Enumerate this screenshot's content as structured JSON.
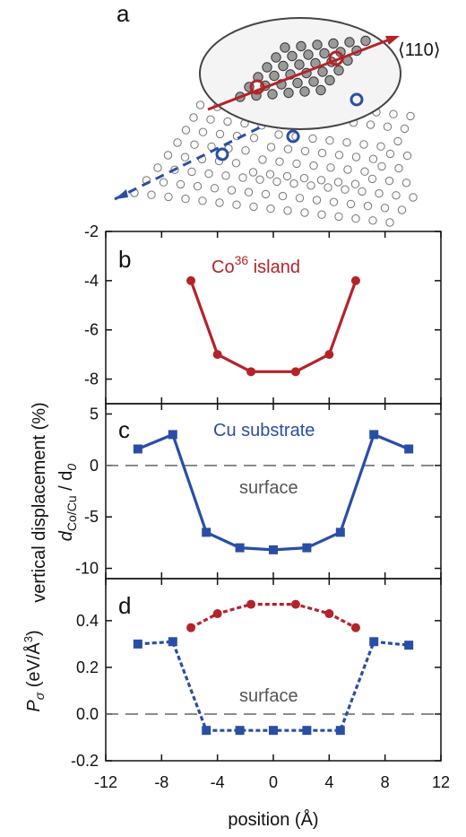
{
  "figure": {
    "panel_a": {
      "letter": "a",
      "direction_label": "⟨110⟩"
    },
    "ylabel_shared": "vertical displacement (%)",
    "ylabel_shared_sub": "d",
    "ylabel_shared_sub_sub": "Co/Cu",
    "ylabel_shared_rest": " / d",
    "ylabel_shared_rest_sub": "0",
    "colors": {
      "cobalt": "#b5232a",
      "copper": "#2a4ea6",
      "surface_line": "#666666",
      "frame": "#111111"
    }
  },
  "chart_data": [
    {
      "type": "line",
      "panel": "b",
      "annotation": {
        "prefix": "Co",
        "sup": "36",
        "suffix": " island"
      },
      "xlim": [
        -12,
        12
      ],
      "ylim": [
        -9,
        -2
      ],
      "yticks": [
        -8,
        -6,
        -4,
        -2
      ],
      "series": [
        {
          "style": "solid",
          "marker": "circle",
          "color": "#b5232a",
          "x": [
            -5.9,
            -4.0,
            -1.6,
            1.6,
            4.0,
            5.9
          ],
          "y": [
            -4.0,
            -7.0,
            -7.7,
            -7.7,
            -7.0,
            -4.0
          ]
        }
      ]
    },
    {
      "type": "line",
      "panel": "c",
      "annotation": {
        "text": "Cu substrate"
      },
      "surface_label": "surface",
      "reference_line": 0,
      "xlim": [
        -12,
        12
      ],
      "ylim": [
        -11,
        6
      ],
      "yticks": [
        -10,
        -5,
        0,
        5
      ],
      "series": [
        {
          "style": "solid",
          "marker": "square",
          "color": "#2a4ea6",
          "x": [
            -9.7,
            -7.2,
            -4.8,
            -2.4,
            0.0,
            2.4,
            4.8,
            7.2,
            9.7
          ],
          "y": [
            1.6,
            3.0,
            -6.5,
            -8.0,
            -8.2,
            -8.0,
            -6.5,
            3.0,
            1.6
          ]
        }
      ]
    },
    {
      "type": "line",
      "panel": "d",
      "ylabel": "P",
      "ylabel_sub": "σ",
      "ylabel_rest": " (eV/Å",
      "ylabel_sup": "3",
      "ylabel_end": ")",
      "surface_label": "surface",
      "reference_line": 0,
      "xlabel": "position (Å)",
      "xlim": [
        -12,
        12
      ],
      "ylim": [
        -0.2,
        0.58
      ],
      "yticks": [
        -0.2,
        0.0,
        0.2,
        0.4
      ],
      "ytick_labels": [
        "-0.2",
        "0.0",
        "0.2",
        "0.4"
      ],
      "xticks": [
        -12,
        -8,
        -4,
        0,
        4,
        8,
        12
      ],
      "xtick_labels": [
        "-12",
        "-8",
        "-4",
        "0",
        "4",
        "8",
        "12"
      ],
      "series": [
        {
          "style": "dotted",
          "marker": "circle",
          "color": "#b5232a",
          "x": [
            -5.9,
            -4.0,
            -1.6,
            1.6,
            4.0,
            5.9
          ],
          "y": [
            0.37,
            0.43,
            0.47,
            0.47,
            0.43,
            0.37
          ]
        },
        {
          "style": "dotted",
          "marker": "square",
          "color": "#2a4ea6",
          "x": [
            -9.7,
            -7.2,
            -4.8,
            -2.4,
            0.0,
            2.4,
            4.8,
            7.2,
            9.7
          ],
          "y": [
            0.3,
            0.31,
            -0.07,
            -0.07,
            -0.07,
            -0.07,
            -0.07,
            0.31,
            0.295
          ]
        }
      ]
    }
  ]
}
